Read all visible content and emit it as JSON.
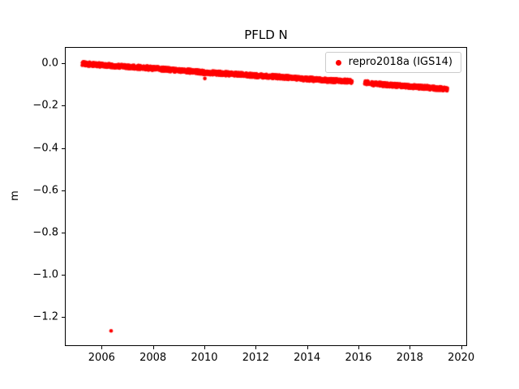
{
  "chart_data": {
    "type": "scatter",
    "title": "PFLD N",
    "xlabel": "",
    "ylabel": "m",
    "xlim": [
      2004.6,
      2020.2
    ],
    "ylim": [
      -1.334,
      0.074
    ],
    "xticks": [
      2006,
      2008,
      2010,
      2012,
      2014,
      2016,
      2018,
      2020
    ],
    "yticks": [
      0.0,
      -0.2,
      -0.4,
      -0.6,
      -0.8,
      -1.0,
      -1.2
    ],
    "grid": false,
    "legend_position": "upper right",
    "series": [
      {
        "name": "repro2018a (IGS14)",
        "color": "#ff0000",
        "marker": "dot",
        "marker_radius_px": 2.3,
        "band_halfwidth": 0.009,
        "segments": [
          [
            2005.28,
            2015.78
          ],
          [
            2016.28,
            2016.45
          ],
          [
            2016.55,
            2019.5
          ]
        ],
        "trend": [
          [
            2005.28,
            -0.005
          ],
          [
            2006.0,
            -0.011
          ],
          [
            2007.0,
            -0.019
          ],
          [
            2008.0,
            -0.027
          ],
          [
            2009.0,
            -0.036
          ],
          [
            2010.0,
            -0.046
          ],
          [
            2011.0,
            -0.053
          ],
          [
            2012.0,
            -0.061
          ],
          [
            2013.0,
            -0.068
          ],
          [
            2014.0,
            -0.077
          ],
          [
            2015.0,
            -0.085
          ],
          [
            2015.78,
            -0.089
          ],
          [
            2016.28,
            -0.094
          ],
          [
            2016.45,
            -0.096
          ],
          [
            2016.55,
            -0.099
          ],
          [
            2017.0,
            -0.104
          ],
          [
            2018.0,
            -0.112
          ],
          [
            2019.0,
            -0.121
          ],
          [
            2019.5,
            -0.125
          ]
        ],
        "outliers": [
          [
            2006.4,
            -1.27
          ]
        ],
        "extra_points": [
          [
            2010.05,
            -0.075
          ]
        ]
      }
    ]
  }
}
